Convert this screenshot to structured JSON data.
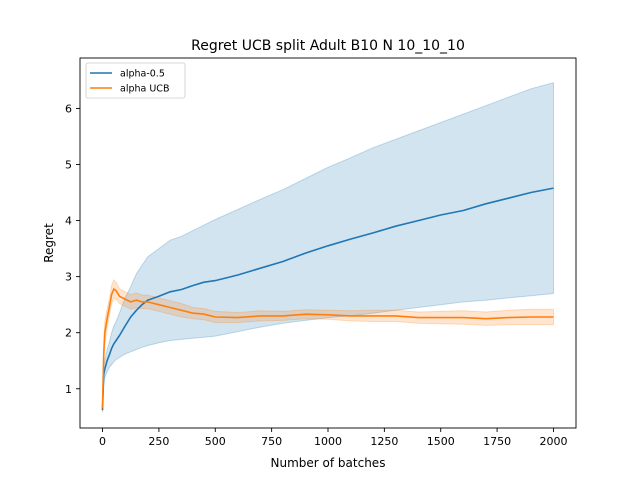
{
  "chart_data": {
    "type": "line",
    "title": "Regret UCB split Adult B10 N 10_10_10",
    "xlabel": "Number of batches",
    "ylabel": "Regret",
    "xlim": [
      -100,
      2100
    ],
    "ylim": [
      0.3,
      6.9
    ],
    "xticks": [
      0,
      250,
      500,
      750,
      1000,
      1250,
      1500,
      1750,
      2000
    ],
    "yticks": [
      1,
      2,
      3,
      4,
      5,
      6
    ],
    "grid": false,
    "legend_position": "top-left",
    "series": [
      {
        "name": "alpha-0.5",
        "color": "#1f77b4",
        "x": [
          0,
          5,
          10,
          20,
          30,
          40,
          50,
          60,
          75,
          100,
          125,
          150,
          175,
          200,
          250,
          300,
          350,
          400,
          450,
          500,
          600,
          700,
          800,
          900,
          1000,
          1100,
          1200,
          1300,
          1400,
          1500,
          1600,
          1700,
          1800,
          1900,
          2000
        ],
        "y": [
          0.62,
          1.25,
          1.35,
          1.5,
          1.6,
          1.72,
          1.8,
          1.86,
          1.95,
          2.12,
          2.28,
          2.4,
          2.5,
          2.58,
          2.65,
          2.73,
          2.77,
          2.84,
          2.9,
          2.93,
          3.03,
          3.15,
          3.27,
          3.42,
          3.55,
          3.67,
          3.78,
          3.9,
          4.0,
          4.1,
          4.18,
          4.3,
          4.4,
          4.5,
          4.58
        ],
        "lower": [
          0.58,
          1.1,
          1.2,
          1.3,
          1.38,
          1.43,
          1.48,
          1.52,
          1.56,
          1.62,
          1.66,
          1.7,
          1.74,
          1.77,
          1.82,
          1.86,
          1.88,
          1.9,
          1.92,
          1.94,
          2.02,
          2.1,
          2.17,
          2.22,
          2.27,
          2.3,
          2.35,
          2.4,
          2.45,
          2.5,
          2.55,
          2.58,
          2.62,
          2.66,
          2.7
        ],
        "upper": [
          0.66,
          1.4,
          1.5,
          1.7,
          1.82,
          2.0,
          2.12,
          2.2,
          2.35,
          2.62,
          2.82,
          3.05,
          3.2,
          3.35,
          3.5,
          3.65,
          3.72,
          3.82,
          3.92,
          4.02,
          4.2,
          4.38,
          4.55,
          4.75,
          4.95,
          5.12,
          5.3,
          5.45,
          5.6,
          5.75,
          5.9,
          6.05,
          6.2,
          6.35,
          6.46
        ]
      },
      {
        "name": "alpha UCB",
        "color": "#ff7f0e",
        "x": [
          0,
          5,
          10,
          20,
          30,
          40,
          50,
          60,
          75,
          100,
          125,
          150,
          175,
          200,
          250,
          300,
          350,
          400,
          450,
          500,
          600,
          700,
          800,
          900,
          1000,
          1100,
          1200,
          1300,
          1400,
          1500,
          1600,
          1700,
          1800,
          1900,
          2000
        ],
        "y": [
          0.65,
          1.6,
          2.0,
          2.25,
          2.45,
          2.68,
          2.78,
          2.75,
          2.65,
          2.6,
          2.55,
          2.58,
          2.55,
          2.55,
          2.5,
          2.45,
          2.4,
          2.35,
          2.33,
          2.28,
          2.27,
          2.3,
          2.3,
          2.33,
          2.32,
          2.3,
          2.3,
          2.3,
          2.27,
          2.27,
          2.27,
          2.25,
          2.27,
          2.28,
          2.28
        ],
        "lower": [
          0.6,
          1.4,
          1.8,
          2.08,
          2.3,
          2.52,
          2.62,
          2.6,
          2.52,
          2.47,
          2.42,
          2.45,
          2.43,
          2.43,
          2.38,
          2.33,
          2.28,
          2.25,
          2.23,
          2.18,
          2.18,
          2.21,
          2.22,
          2.25,
          2.24,
          2.21,
          2.2,
          2.2,
          2.17,
          2.16,
          2.15,
          2.13,
          2.14,
          2.14,
          2.14
        ],
        "upper": [
          0.7,
          1.8,
          2.2,
          2.42,
          2.6,
          2.84,
          2.94,
          2.9,
          2.78,
          2.73,
          2.68,
          2.71,
          2.67,
          2.67,
          2.62,
          2.57,
          2.52,
          2.45,
          2.43,
          2.38,
          2.36,
          2.39,
          2.38,
          2.41,
          2.4,
          2.39,
          2.4,
          2.4,
          2.37,
          2.38,
          2.39,
          2.37,
          2.4,
          2.42,
          2.42
        ]
      }
    ]
  }
}
